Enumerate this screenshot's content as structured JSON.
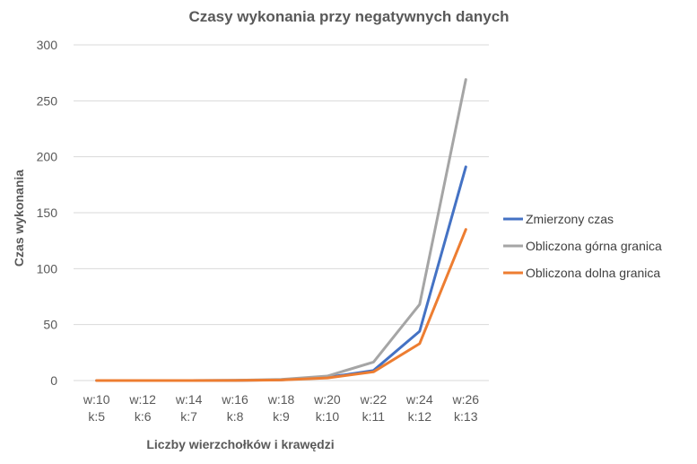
{
  "chart_data": {
    "type": "line",
    "title": "Czasy wykonania przy negatywnych danych",
    "xlabel": "Liczby wierzchołków i krawędzi",
    "ylabel": "Czas wykonania",
    "categories": [
      [
        "w:10",
        "k:5"
      ],
      [
        "w:12",
        "k:6"
      ],
      [
        "w:14",
        "k:7"
      ],
      [
        "w:16",
        "k:8"
      ],
      [
        "w:18",
        "k:9"
      ],
      [
        "w:20",
        "k:10"
      ],
      [
        "w:22",
        "k:11"
      ],
      [
        "w:24",
        "k:12"
      ],
      [
        "w:26",
        "k:13"
      ]
    ],
    "ylim": [
      0,
      300
    ],
    "yticks": [
      0,
      50,
      100,
      150,
      200,
      250,
      300
    ],
    "grid": true,
    "legend_position": "right",
    "series": [
      {
        "name": "Zmierzony czas",
        "color": "#4472c4",
        "values": [
          0,
          0,
          0,
          0.1,
          0.6,
          2.8,
          9,
          44,
          191
        ]
      },
      {
        "name": "Obliczona górna granica",
        "color": "#a5a5a5",
        "values": [
          0,
          0,
          0,
          0.2,
          1,
          4,
          16.5,
          68,
          269
        ]
      },
      {
        "name": "Obliczona dolna granica",
        "color": "#ed7d31",
        "values": [
          0,
          0,
          0,
          0.1,
          0.5,
          2.3,
          7.8,
          33,
          135
        ]
      }
    ]
  }
}
